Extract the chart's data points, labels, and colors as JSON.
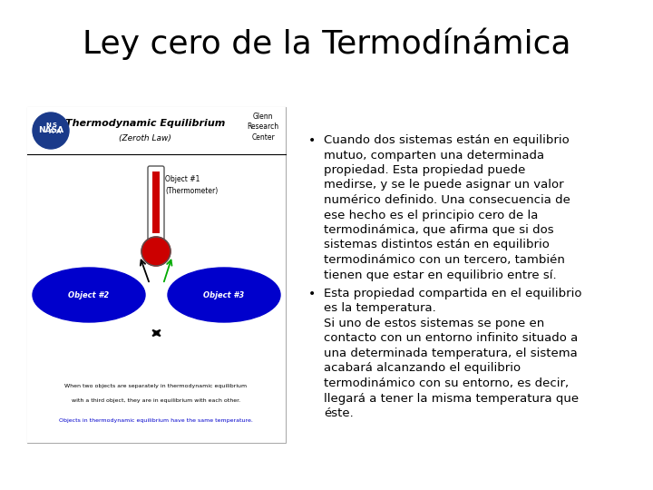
{
  "title": "Ley cero de la Termodínámica",
  "title_fontsize": 26,
  "background_color": "#ffffff",
  "text_color": "#000000",
  "text_fontsize": 9.5,
  "bullet1": "Cuando dos sistemas están en equilibrio\nmutuo, comparten una determinada\npropiedad. Esta propiedad puede\nmedirse, y se le puede asignar un valor\nnumérico definido. Una consecuencia de\nese hecho es el principio cero de la\ntermodiínámica, que afirma que si dos\nsistemas distintos están en equilibrio\ntermodiínámico con un tercero, también\ntienen que estar en equilibrio entre sí.",
  "bullet2_bold": "Esta propiedad compartida en el equilibrio\nes la temperatura.",
  "bullet2_body": "Si uno de estos sistemas se pone en\ncontacto con un entorno infinito situado a\nuna determinada temperatura, el sistema\nacabará alcanzando el equilibrio\ntermodiínámico con su entorno, es decir,\nllegará a tener la misma temperatura que\néste.",
  "nasa_color": "#1a3a8a",
  "blue_color": "#0000cc",
  "red_color": "#cc0000",
  "green_color": "#00aa00",
  "diagram_header_text": "Thermodynamic Equilibrium",
  "diagram_subheader": "(Zeroth Law)",
  "diagram_caption1": "When two objects are separately in thermodynamic equilibrium",
  "diagram_caption2": "with a third object, they are in equilibrium with each other.",
  "diagram_caption3": "Objects in thermodynamic equilibrium have the same temperature.",
  "caption3_color": "#0000cc",
  "obj1_label": "Object #1",
  "obj1_sublabel": "(Thermometer)",
  "obj2_label": "Object #2",
  "obj3_label": "Object #3",
  "glenn_text": "Glenn\nResearch\nCenter"
}
